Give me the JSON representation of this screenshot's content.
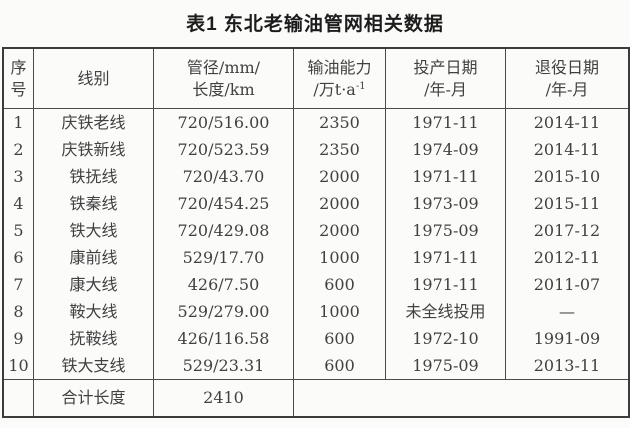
{
  "title": "表1  东北老输油管网相关数据",
  "table": {
    "headers": [
      {
        "line1": "序",
        "line2": "号"
      },
      {
        "line1": "线别"
      },
      {
        "line1": "管径/mm/",
        "line2": "长度/km"
      },
      {
        "line1": "输油能力",
        "line2": "/万t·a",
        "sup": "-1"
      },
      {
        "line1": "投产日期",
        "line2": "/年-月"
      },
      {
        "line1": "退役日期",
        "line2": "/年-月"
      }
    ],
    "rows": [
      {
        "no": "1",
        "line": "庆铁老线",
        "size": "720/516.00",
        "capacity": "2350",
        "start": "1971-11",
        "end": "2014-11"
      },
      {
        "no": "2",
        "line": "庆铁新线",
        "size": "720/523.59",
        "capacity": "2350",
        "start": "1974-09",
        "end": "2014-11"
      },
      {
        "no": "3",
        "line": "铁抚线",
        "size": "720/43.70",
        "capacity": "2000",
        "start": "1971-11",
        "end": "2015-10"
      },
      {
        "no": "4",
        "line": "铁秦线",
        "size": "720/454.25",
        "capacity": "2000",
        "start": "1973-09",
        "end": "2015-11"
      },
      {
        "no": "5",
        "line": "铁大线",
        "size": "720/429.08",
        "capacity": "2000",
        "start": "1975-09",
        "end": "2017-12"
      },
      {
        "no": "6",
        "line": "康前线",
        "size": "529/17.70",
        "capacity": "1000",
        "start": "1971-11",
        "end": "2012-11"
      },
      {
        "no": "7",
        "line": "康大线",
        "size": "426/7.50",
        "capacity": "600",
        "start": "1971-11",
        "end": "2011-07"
      },
      {
        "no": "8",
        "line": "鞍大线",
        "size": "529/279.00",
        "capacity": "1000",
        "start": "未全线投用",
        "end": "—"
      },
      {
        "no": "9",
        "line": "抚鞍线",
        "size": "426/116.58",
        "capacity": "600",
        "start": "1972-10",
        "end": "1991-09"
      },
      {
        "no": "10",
        "line": "铁大支线",
        "size": "529/23.31",
        "capacity": "600",
        "start": "1975-09",
        "end": "2013-11"
      }
    ],
    "footer": {
      "no": "",
      "label": "合计长度",
      "value": "2410",
      "rest": ""
    }
  },
  "colors": {
    "border": "#4a4a4a",
    "outer_border": "#3c3c3c",
    "text": "#414141",
    "title_text": "#1c1c1c",
    "background": "#fbfbfa"
  }
}
